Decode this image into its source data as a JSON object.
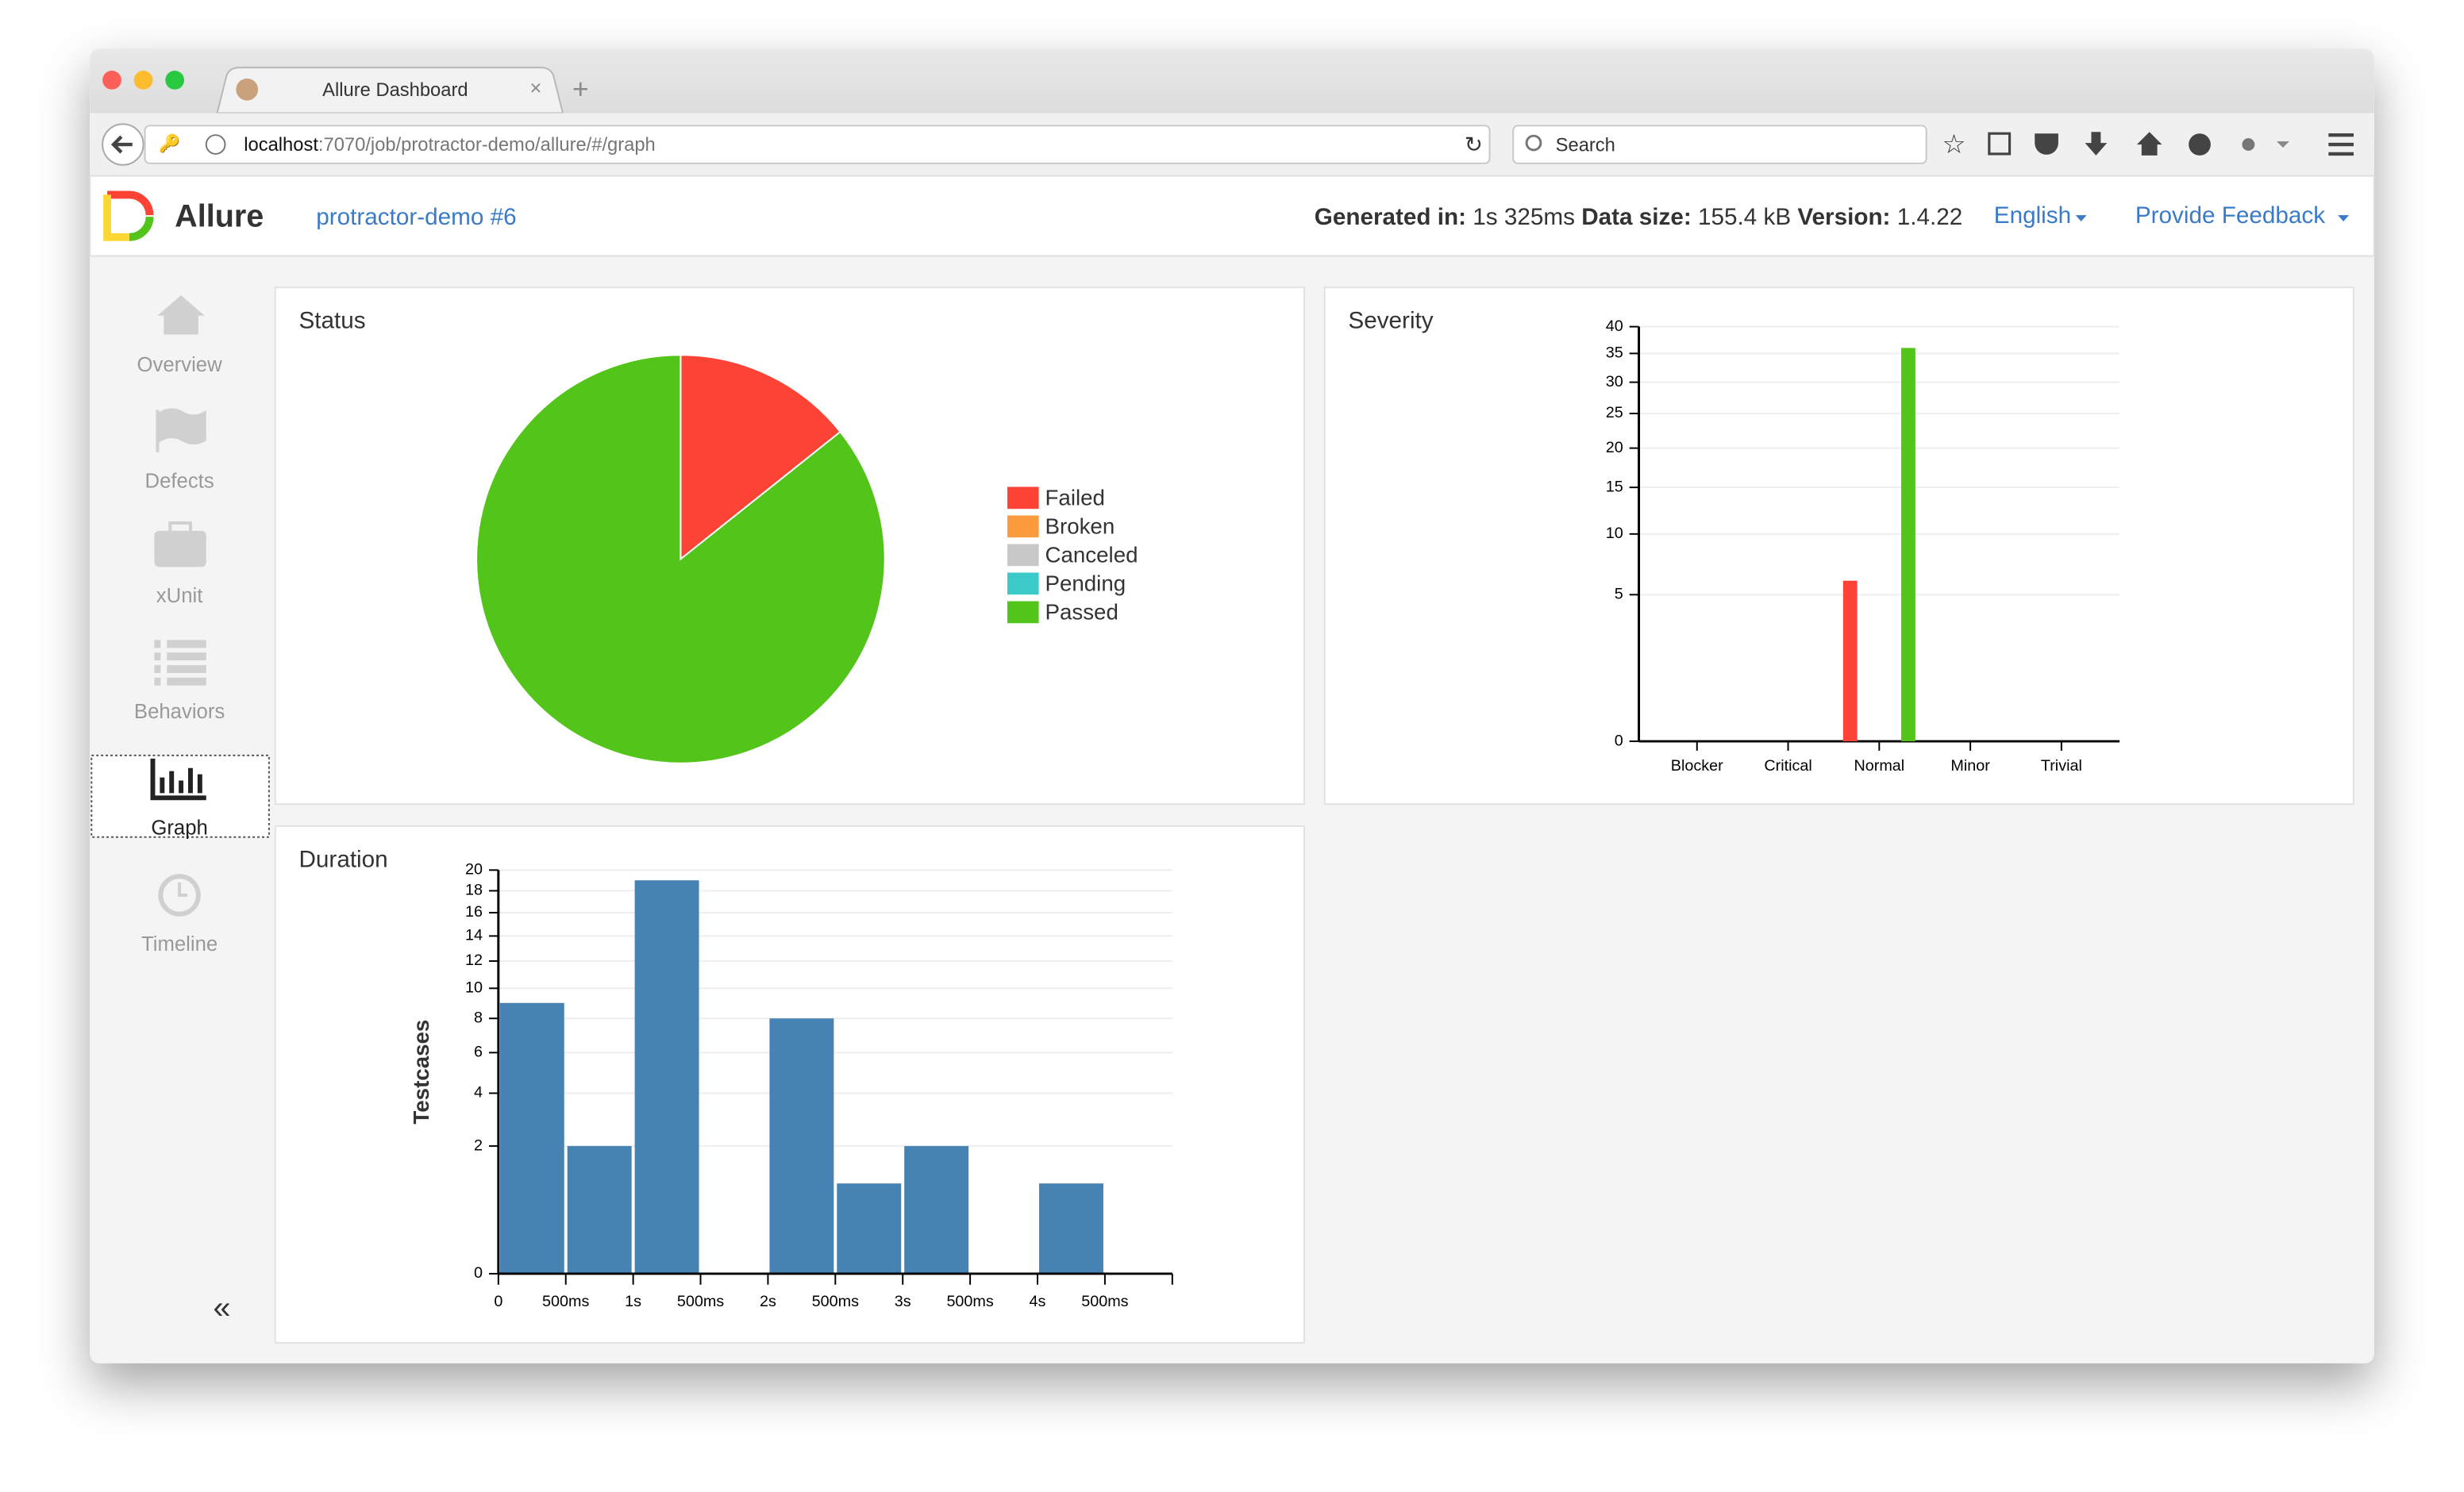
{
  "browser": {
    "tab_title": "Allure Dashboard",
    "url_host": "localhost",
    "url_path": ":7070/job/protractor-demo/allure/#/graph",
    "search_placeholder": "Search"
  },
  "header": {
    "brand": "Allure",
    "report": "protractor-demo #6",
    "generated_label": "Generated in:",
    "generated_value": "1s 325ms",
    "size_label": "Data size:",
    "size_value": "155.4 kB",
    "version_label": "Version:",
    "version_value": "1.4.22",
    "language": "English",
    "feedback": "Provide Feedback"
  },
  "sidebar": {
    "items": [
      "Overview",
      "Defects",
      "xUnit",
      "Behaviors",
      "Graph",
      "Timeline"
    ]
  },
  "chart_data": [
    {
      "type": "pie",
      "title": "Status",
      "categories": [
        "Failed",
        "Broken",
        "Canceled",
        "Pending",
        "Passed"
      ],
      "values": [
        6,
        0,
        0,
        0,
        36
      ],
      "colors": [
        "#fd4335",
        "#fd9b3f",
        "#c8c8c8",
        "#3ccbca",
        "#53c41a"
      ],
      "legend": "right"
    },
    {
      "type": "bar",
      "title": "Severity",
      "categories": [
        "Blocker",
        "Critical",
        "Normal",
        "Minor",
        "Trivial"
      ],
      "series": [
        {
          "color": "#fd4335",
          "values": [
            0,
            0,
            6,
            0,
            0
          ]
        },
        {
          "color": "#53c41a",
          "values": [
            0,
            0,
            36,
            0,
            0
          ]
        }
      ],
      "ylim": [
        0,
        40
      ],
      "yticks": [
        0,
        5,
        10,
        15,
        20,
        25,
        30,
        35,
        40
      ],
      "scale": "sqrt",
      "grid": true
    },
    {
      "type": "histogram",
      "title": "Duration",
      "ylabel": "Testcases",
      "bins": [
        0,
        0.5,
        1,
        1.5,
        2,
        2.5,
        3,
        3.5,
        4,
        4.5,
        5
      ],
      "values": [
        9,
        2,
        19,
        0,
        8,
        1,
        2,
        0,
        1,
        0
      ],
      "color": "#4682b4",
      "xlim": [
        0,
        5
      ],
      "xticks": [
        0,
        {
          "value": 0.5,
          "label": "500ms"
        },
        {
          "value": 1,
          "label": "1s"
        },
        {
          "value": 1.5,
          "label": "500ms"
        },
        {
          "value": 2,
          "label": "2s"
        },
        {
          "value": 2.5,
          "label": "500ms"
        },
        {
          "value": 3,
          "label": "3s"
        },
        {
          "value": 3.5,
          "label": "500ms"
        },
        {
          "value": 4,
          "label": "4s"
        },
        {
          "value": 4.5,
          "label": "500ms"
        }
      ],
      "ylim": [
        0,
        20
      ],
      "yticks": [
        0,
        2,
        4,
        6,
        8,
        10,
        12,
        14,
        16,
        18,
        20
      ],
      "scale": "sqrt",
      "grid": true
    }
  ]
}
